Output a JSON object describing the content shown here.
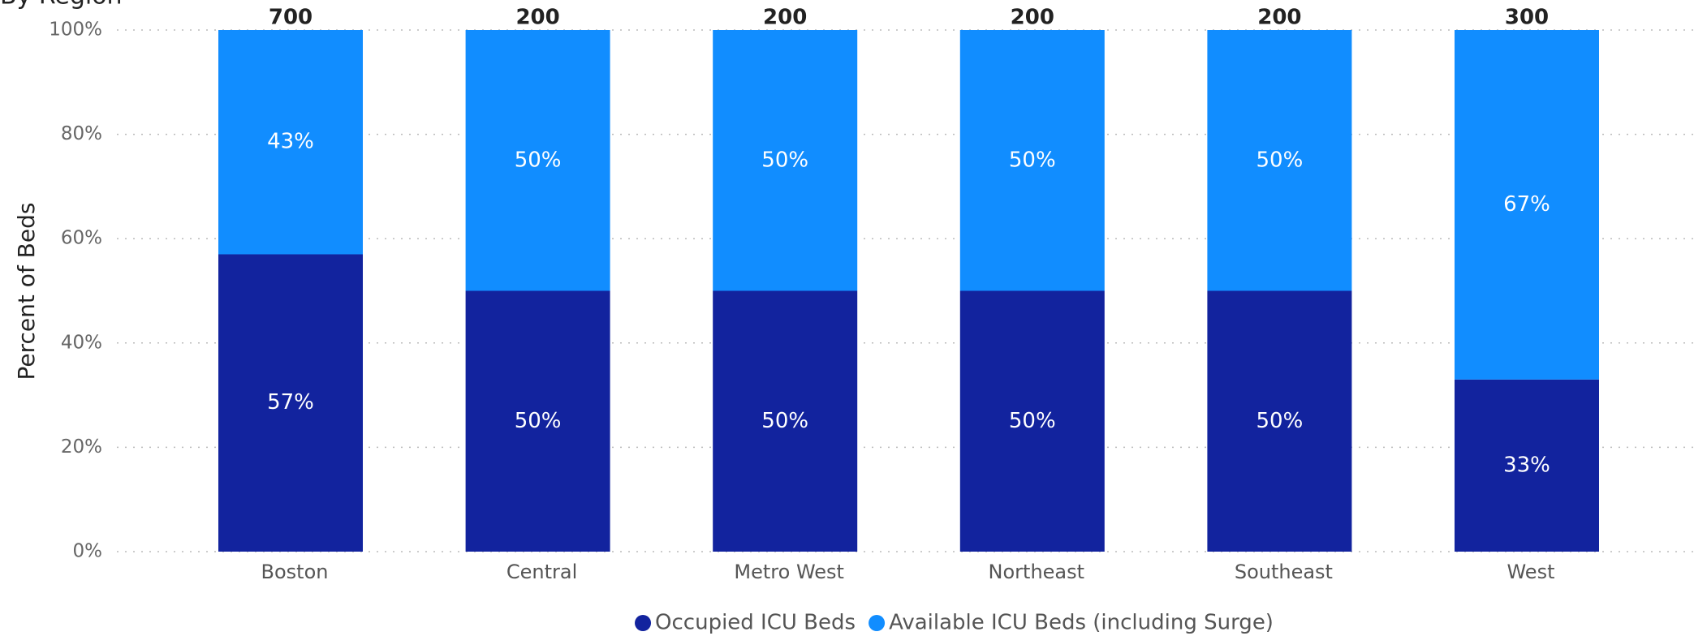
{
  "chart_data": {
    "type": "stacked_bar_100",
    "title": "By Region",
    "y_label": "Percent of Beds",
    "categories": [
      "Boston",
      "Central",
      "Metro West",
      "Northeast",
      "Southeast",
      "West"
    ],
    "totals": [
      700,
      200,
      200,
      200,
      200,
      300
    ],
    "series": [
      {
        "name": "Occupied ICU Beds",
        "color": "#12239e",
        "values": [
          57,
          50,
          50,
          50,
          50,
          33
        ],
        "value_labels": [
          "57%",
          "50%",
          "50%",
          "50%",
          "50%",
          "33%"
        ]
      },
      {
        "name": "Available ICU Beds (including Surge)",
        "color": "#118dff",
        "values": [
          43,
          50,
          50,
          50,
          50,
          67
        ],
        "value_labels": [
          "43%",
          "50%",
          "50%",
          "50%",
          "50%",
          "67%"
        ]
      }
    ],
    "ylim": [
      0,
      100
    ],
    "yticks": [
      {
        "value": 0,
        "label": "0%"
      },
      {
        "value": 20,
        "label": "20%"
      },
      {
        "value": 40,
        "label": "40%"
      },
      {
        "value": 60,
        "label": "60%"
      },
      {
        "value": 80,
        "label": "80%"
      },
      {
        "value": 100,
        "label": "100%"
      }
    ],
    "grid": true,
    "legend": "bottom"
  }
}
